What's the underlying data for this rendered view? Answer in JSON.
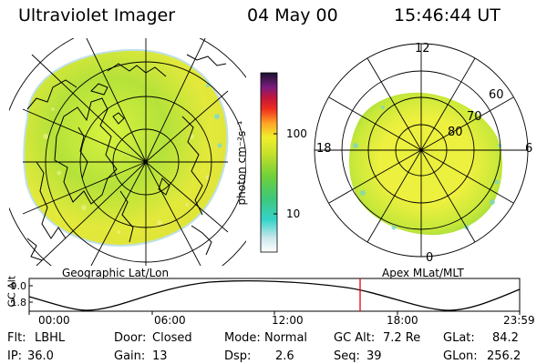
{
  "header": {
    "title": "Ultraviolet Imager",
    "date": "04 May 00",
    "time": "15:46:44 UT"
  },
  "colorbar": {
    "unit_label": "photon cm⁻²s⁻¹",
    "tick_labels": [
      "100",
      "10"
    ],
    "tick_values": [
      100,
      10
    ]
  },
  "panels": {
    "geographic_label": "Geographic Lat/Lon",
    "apex_label": "Apex MLat/MLT"
  },
  "apex_plot": {
    "mlt_labels": [
      "12",
      "18",
      "6",
      "0"
    ],
    "mlat_labels": [
      "60",
      "70",
      "80"
    ]
  },
  "timeline": {
    "y_axis_label": "GC Alt",
    "y_ticks": [
      "9.0",
      "1.8"
    ],
    "x_ticks": [
      "00:00",
      "06:00",
      "12:00",
      "18:00",
      "23:59"
    ],
    "current_time": "15:46:44"
  },
  "footer": {
    "flt_label": "Flt:",
    "flt_value": "LBHL",
    "ip_label": "IP:",
    "ip_value": "36.0",
    "door_label": "Door:",
    "door_value": "Closed",
    "gain_label": "Gain:",
    "gain_value": "13",
    "mode_label": "Mode:",
    "mode_value": "Normal",
    "dsp_label": "Dsp:",
    "dsp_value": "2.6",
    "gcalt_label": "GC Alt:",
    "gcalt_value": "7.2 Re",
    "seq_label": "Seq:",
    "seq_value": "39",
    "glat_label": "GLat:",
    "glat_value": "84.2",
    "glon_label": "GLon:",
    "glon_value": "256.2"
  },
  "colors": {
    "timeline_marker": "#e8000b",
    "aurora_yellow": "#e6ec3a",
    "aurora_green": "#9bd93a",
    "aurora_cyan": "#6fd8d0"
  }
}
